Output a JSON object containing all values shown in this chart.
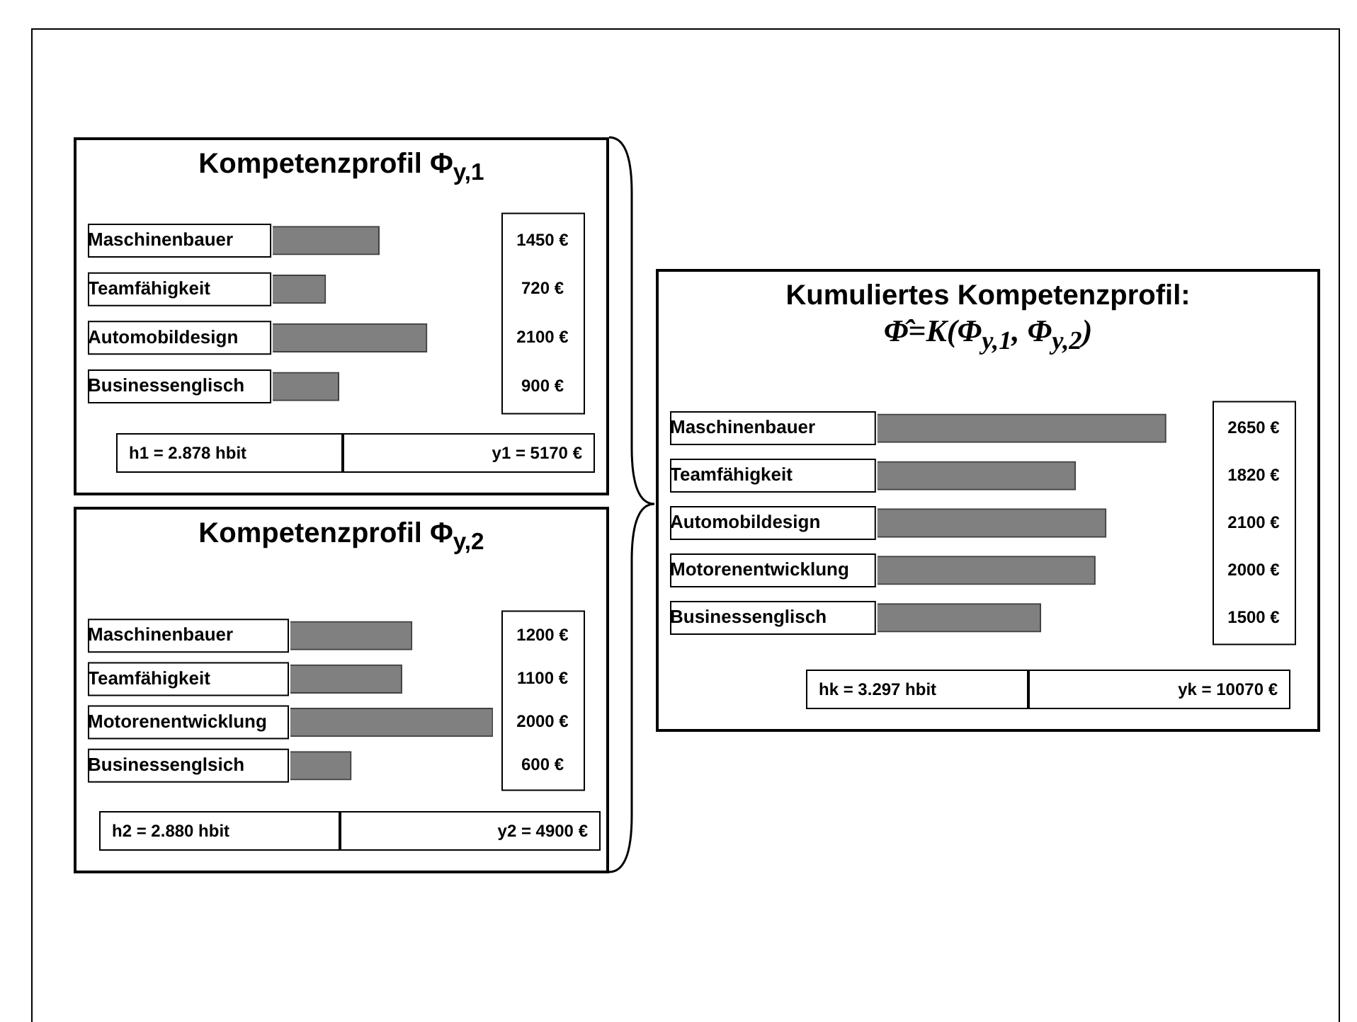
{
  "chart_data": [
    {
      "type": "bar",
      "orientation": "horizontal",
      "title": "Kompetenzprofil Φ$_{y,1}$",
      "categories": [
        "Maschinenbauer",
        "Teamfähigkeit",
        "Automobildesign",
        "Businessenglisch"
      ],
      "values": [
        1450,
        720,
        2100,
        900
      ],
      "value_labels": [
        "1450 €",
        "720 €",
        "2100 €",
        "900 €"
      ],
      "color": "#808080",
      "tick_labels": "y",
      "grid": false,
      "legend": false,
      "annotations": [
        "h1 = 2.878 hbit",
        "y1 = 5170 €"
      ]
    },
    {
      "type": "bar",
      "orientation": "horizontal",
      "title": "Kompetenzprofil Φ$_{y,2}$",
      "categories": [
        "Maschinenbauer",
        "Teamfähigkeit",
        "Motorenentwicklung",
        "Businessenglsich"
      ],
      "values": [
        1200,
        1100,
        2000,
        600
      ],
      "value_labels": [
        "1200 €",
        "1100 €",
        "2000 €",
        "600 €"
      ],
      "color": "#808080",
      "tick_labels": "y",
      "grid": false,
      "legend": false,
      "annotations": [
        "h2 = 2.880 hbit",
        "y2 = 4900 €"
      ]
    },
    {
      "type": "bar",
      "orientation": "horizontal",
      "title": "Kumuliertes Kompetenzprofil:",
      "subtitle": "Φ̂=K(Φ$_{y,1}$, Φ$_{y,2}$)",
      "categories": [
        "Maschinenbauer",
        "Teamfähigkeit",
        "Automobildesign",
        "Motorenentwicklung",
        "Businessenglisch"
      ],
      "values": [
        2650,
        1820,
        2100,
        2000,
        1500
      ],
      "value_labels": [
        "2650 €",
        "1820 €",
        "2100 €",
        "2000 €",
        "1500 €"
      ],
      "color": "#808080",
      "tick_labels": "y",
      "grid": false,
      "legend": false,
      "annotations": [
        "hk  = 3.297 hbit",
        "yk = 10070 €"
      ]
    }
  ]
}
